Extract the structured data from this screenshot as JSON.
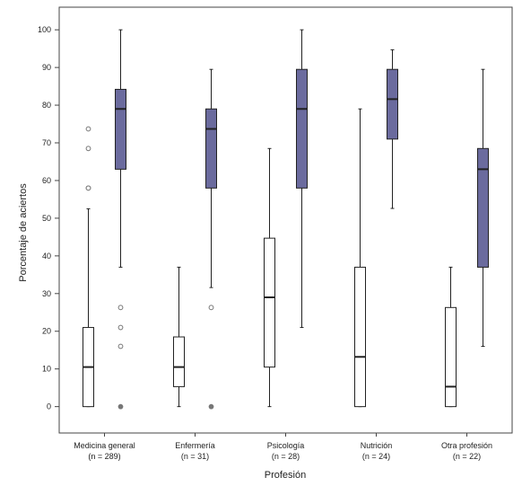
{
  "chart_data": {
    "type": "boxplot",
    "xlabel": "Profesión",
    "ylabel": "Porcentaje de aciertos",
    "ylim": [
      -7,
      106
    ],
    "yticks": [
      0,
      10,
      20,
      30,
      40,
      50,
      60,
      70,
      80,
      90,
      100
    ],
    "grid": false,
    "colors": {
      "pre": "#ffffff",
      "post": "#6b6b9e",
      "stroke": "#222222"
    },
    "categories": [
      {
        "name": "Medicina general",
        "n_label": "(n = 289)",
        "boxes": [
          {
            "group": "pre",
            "min": 0,
            "q1": 0,
            "median": 10.5,
            "q3": 21,
            "max": 52.5,
            "outliers": [
              58,
              58,
              68.5,
              73.7
            ]
          },
          {
            "group": "post",
            "min": 37,
            "q1": 63,
            "median": 79,
            "q3": 84.2,
            "max": 100,
            "outliers": [
              26.3,
              21,
              16,
              0
            ]
          }
        ]
      },
      {
        "name": "Enfermería",
        "n_label": "(n = 31)",
        "boxes": [
          {
            "group": "pre",
            "min": 0,
            "q1": 5.3,
            "median": 10.5,
            "q3": 18.5,
            "max": 37,
            "outliers": []
          },
          {
            "group": "post",
            "min": 31.6,
            "q1": 58,
            "median": 73.7,
            "q3": 79,
            "max": 89.5,
            "outliers": [
              26.3,
              0
            ]
          }
        ]
      },
      {
        "name": "Psicología",
        "n_label": "(n = 28)",
        "boxes": [
          {
            "group": "pre",
            "min": 0,
            "q1": 10.5,
            "median": 29,
            "q3": 44.7,
            "max": 68.5,
            "outliers": []
          },
          {
            "group": "post",
            "min": 21,
            "q1": 58,
            "median": 79,
            "q3": 89.5,
            "max": 100,
            "outliers": []
          }
        ]
      },
      {
        "name": "Nutrición",
        "n_label": "(n = 24)",
        "boxes": [
          {
            "group": "pre",
            "min": 0,
            "q1": 0,
            "median": 13.2,
            "q3": 37,
            "max": 79,
            "outliers": []
          },
          {
            "group": "post",
            "min": 52.6,
            "q1": 71,
            "median": 81.6,
            "q3": 89.5,
            "max": 94.7,
            "outliers": []
          }
        ]
      },
      {
        "name": "Otra profesión",
        "n_label": "(n = 22)",
        "boxes": [
          {
            "group": "pre",
            "min": 0,
            "q1": 0,
            "median": 5.3,
            "q3": 26.3,
            "max": 37,
            "outliers": []
          },
          {
            "group": "post",
            "min": 16,
            "q1": 37,
            "median": 63,
            "q3": 68.5,
            "max": 89.5,
            "outliers": []
          }
        ]
      }
    ]
  }
}
